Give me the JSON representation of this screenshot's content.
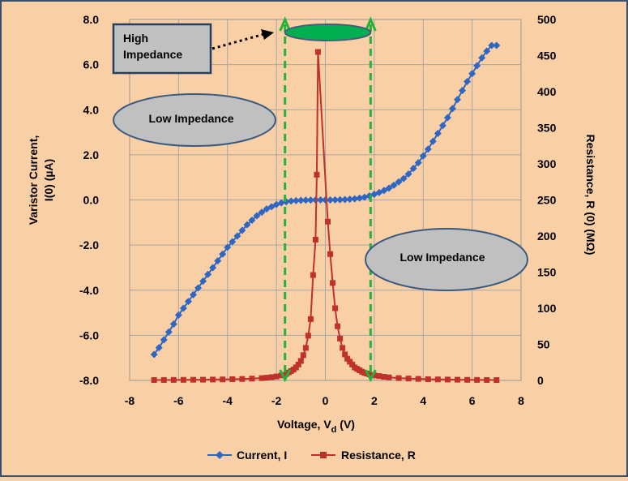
{
  "chart_data": {
    "type": "scatter",
    "xlabel": "Voltage, V",
    "xlabel_sub": "d",
    "xlabel_unit": " (V)",
    "ylabel_left_line1": "Varistor Current,",
    "ylabel_left_line2": "I(0) (µA)",
    "ylabel_right": "Resistance, R (0) (MΩ)",
    "xlim": [
      -8,
      8
    ],
    "ylim_left": [
      -8,
      8
    ],
    "ylim_right": [
      0,
      500
    ],
    "x_ticks": [
      "-8",
      "-6",
      "-4",
      "-2",
      "0",
      "2",
      "4",
      "6",
      "8"
    ],
    "y_left_ticks": [
      "-8.0",
      "-6.0",
      "-4.0",
      "-2.0",
      "0.0",
      "2.0",
      "4.0",
      "6.0",
      "8.0"
    ],
    "y_right_ticks": [
      "0",
      "50",
      "100",
      "150",
      "200",
      "250",
      "300",
      "350",
      "400",
      "450",
      "500"
    ],
    "grid": true,
    "legend_position": "bottom",
    "series": [
      {
        "name": "Current, I",
        "axis": "left",
        "color": "#2e66c4",
        "marker": "diamond",
        "points": [
          [
            -7.0,
            -6.85
          ],
          [
            -6.8,
            -6.55
          ],
          [
            -6.6,
            -6.2
          ],
          [
            -6.4,
            -5.85
          ],
          [
            -6.2,
            -5.5
          ],
          [
            -6.0,
            -5.1
          ],
          [
            -5.8,
            -4.8
          ],
          [
            -5.6,
            -4.5
          ],
          [
            -5.4,
            -4.2
          ],
          [
            -5.2,
            -3.9
          ],
          [
            -5.0,
            -3.6
          ],
          [
            -4.8,
            -3.3
          ],
          [
            -4.6,
            -3.0
          ],
          [
            -4.4,
            -2.7
          ],
          [
            -4.2,
            -2.4
          ],
          [
            -4.0,
            -2.1
          ],
          [
            -3.8,
            -1.85
          ],
          [
            -3.6,
            -1.6
          ],
          [
            -3.4,
            -1.35
          ],
          [
            -3.2,
            -1.1
          ],
          [
            -3.0,
            -0.9
          ],
          [
            -2.8,
            -0.7
          ],
          [
            -2.6,
            -0.55
          ],
          [
            -2.4,
            -0.4
          ],
          [
            -2.2,
            -0.3
          ],
          [
            -2.0,
            -0.2
          ],
          [
            -1.8,
            -0.13
          ],
          [
            -1.6,
            -0.08
          ],
          [
            -1.4,
            -0.05
          ],
          [
            -1.2,
            -0.03
          ],
          [
            -1.0,
            -0.02
          ],
          [
            -0.8,
            -0.01
          ],
          [
            -0.6,
            -0.005
          ],
          [
            -0.4,
            0.0
          ],
          [
            -0.2,
            0.0
          ],
          [
            0.0,
            0.0
          ],
          [
            0.2,
            0.0
          ],
          [
            0.4,
            0.005
          ],
          [
            0.6,
            0.01
          ],
          [
            0.8,
            0.02
          ],
          [
            1.0,
            0.03
          ],
          [
            1.2,
            0.05
          ],
          [
            1.4,
            0.08
          ],
          [
            1.6,
            0.12
          ],
          [
            1.8,
            0.18
          ],
          [
            2.0,
            0.25
          ],
          [
            2.2,
            0.33
          ],
          [
            2.4,
            0.42
          ],
          [
            2.6,
            0.52
          ],
          [
            2.8,
            0.65
          ],
          [
            3.0,
            0.8
          ],
          [
            3.2,
            0.95
          ],
          [
            3.4,
            1.15
          ],
          [
            3.6,
            1.4
          ],
          [
            3.8,
            1.65
          ],
          [
            4.0,
            1.95
          ],
          [
            4.2,
            2.25
          ],
          [
            4.4,
            2.6
          ],
          [
            4.6,
            2.95
          ],
          [
            4.8,
            3.3
          ],
          [
            5.0,
            3.65
          ],
          [
            5.2,
            4.05
          ],
          [
            5.4,
            4.45
          ],
          [
            5.6,
            4.85
          ],
          [
            5.8,
            5.25
          ],
          [
            6.0,
            5.6
          ],
          [
            6.2,
            5.95
          ],
          [
            6.4,
            6.3
          ],
          [
            6.6,
            6.6
          ],
          [
            6.8,
            6.85
          ],
          [
            7.0,
            6.85
          ]
        ]
      },
      {
        "name": "Resistance, R",
        "axis": "right",
        "color": "#c0312a",
        "marker": "square",
        "points": [
          [
            -7.0,
            0.5
          ],
          [
            -6.6,
            0.6
          ],
          [
            -6.2,
            0.7
          ],
          [
            -5.8,
            0.8
          ],
          [
            -5.4,
            0.9
          ],
          [
            -5.0,
            1.0
          ],
          [
            -4.6,
            1.2
          ],
          [
            -4.2,
            1.4
          ],
          [
            -3.8,
            1.7
          ],
          [
            -3.4,
            2.0
          ],
          [
            -3.0,
            2.5
          ],
          [
            -2.6,
            3.2
          ],
          [
            -2.4,
            3.8
          ],
          [
            -2.2,
            4.5
          ],
          [
            -2.0,
            5.5
          ],
          [
            -1.8,
            7.0
          ],
          [
            -1.6,
            9.0
          ],
          [
            -1.5,
            11
          ],
          [
            -1.4,
            13
          ],
          [
            -1.3,
            15
          ],
          [
            -1.2,
            18
          ],
          [
            -1.1,
            22
          ],
          [
            -1.0,
            27
          ],
          [
            -0.9,
            35
          ],
          [
            -0.8,
            45
          ],
          [
            -0.7,
            62
          ],
          [
            -0.6,
            85
          ],
          [
            -0.5,
            146
          ],
          [
            -0.4,
            195
          ],
          [
            -0.35,
            285
          ],
          [
            -0.3,
            455
          ],
          [
            0.1,
            220
          ],
          [
            0.2,
            175
          ],
          [
            0.3,
            135
          ],
          [
            0.4,
            100
          ],
          [
            0.5,
            75
          ],
          [
            0.6,
            58
          ],
          [
            0.7,
            45
          ],
          [
            0.8,
            36
          ],
          [
            0.9,
            30
          ],
          [
            1.0,
            26
          ],
          [
            1.1,
            22
          ],
          [
            1.2,
            18
          ],
          [
            1.3,
            16
          ],
          [
            1.4,
            14
          ],
          [
            1.5,
            12
          ],
          [
            1.6,
            10.5
          ],
          [
            1.7,
            9.5
          ],
          [
            1.8,
            8.5
          ],
          [
            2.0,
            7
          ],
          [
            2.2,
            6
          ],
          [
            2.4,
            5
          ],
          [
            2.6,
            4.2
          ],
          [
            3.0,
            3.2
          ],
          [
            3.4,
            2.6
          ],
          [
            3.8,
            2.1
          ],
          [
            4.2,
            1.7
          ],
          [
            4.6,
            1.4
          ],
          [
            5.0,
            1.2
          ],
          [
            5.4,
            1.0
          ],
          [
            5.8,
            0.8
          ],
          [
            6.2,
            0.7
          ],
          [
            6.6,
            0.6
          ],
          [
            7.0,
            0.5
          ]
        ]
      }
    ],
    "annotations": {
      "high_impedance_line1": "High",
      "high_impedance_line2": "Impedance",
      "low_impedance_left": "Low Impedance",
      "low_impedance_right": "Low Impedance",
      "region_left_x": -1.65,
      "region_right_x": 1.85
    }
  }
}
